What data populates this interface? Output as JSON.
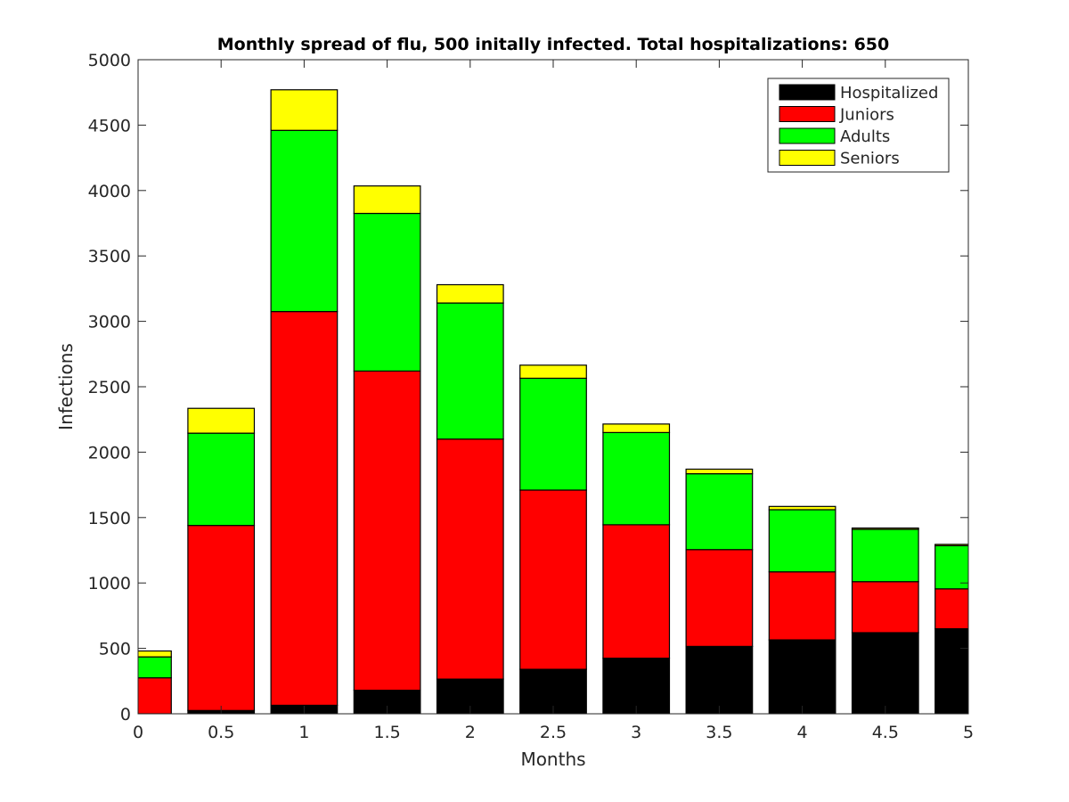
{
  "chart_data": {
    "type": "bar",
    "stacked": true,
    "title": "Monthly spread of flu, 500 initally infected. Total hospitalizations: 650",
    "xlabel": "Months",
    "ylabel": "Infections",
    "x": [
      0,
      0.5,
      1,
      1.5,
      2,
      2.5,
      3,
      3.5,
      4,
      4.5,
      5
    ],
    "xlim": [
      0,
      5
    ],
    "ylim": [
      0,
      5000
    ],
    "xticks": [
      "0",
      "0.5",
      "1",
      "1.5",
      "2",
      "2.5",
      "3",
      "3.5",
      "4",
      "4.5",
      "5"
    ],
    "yticks": [
      "0",
      "500",
      "1000",
      "1500",
      "2000",
      "2500",
      "3000",
      "3500",
      "4000",
      "4500",
      "5000"
    ],
    "bar_width": 0.4,
    "grid": false,
    "legend_position": "top-right",
    "series": [
      {
        "name": "Hospitalized",
        "color": "#000000",
        "values": [
          0,
          25,
          65,
          180,
          265,
          340,
          425,
          515,
          565,
          620,
          650
        ]
      },
      {
        "name": "Juniors",
        "color": "#ff0000",
        "values": [
          275,
          1415,
          3010,
          2440,
          1835,
          1370,
          1020,
          740,
          520,
          390,
          305
        ]
      },
      {
        "name": "Adults",
        "color": "#00ff00",
        "values": [
          160,
          705,
          1385,
          1205,
          1040,
          855,
          705,
          580,
          475,
          400,
          330
        ]
      },
      {
        "name": "Seniors",
        "color": "#ffff00",
        "values": [
          45,
          190,
          310,
          210,
          140,
          100,
          65,
          35,
          25,
          10,
          10
        ]
      }
    ]
  }
}
